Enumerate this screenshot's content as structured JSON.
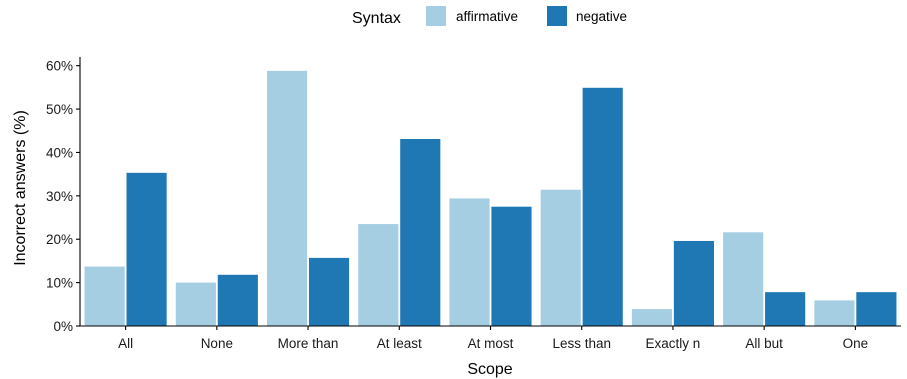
{
  "chart_data": {
    "type": "bar",
    "title": "",
    "xlabel": "Scope",
    "ylabel": "Incorrect answers (%)",
    "ylim": [
      0,
      62
    ],
    "yticks": [
      0,
      10,
      20,
      30,
      40,
      50,
      60
    ],
    "ytick_labels": [
      "0%",
      "10%",
      "20%",
      "30%",
      "40%",
      "50%",
      "60%"
    ],
    "grid": false,
    "legend": {
      "title": "Syntax",
      "placement": "top-center",
      "entries": [
        "affirmative",
        "negative"
      ]
    },
    "categories": [
      "All",
      "None",
      "More than",
      "At least",
      "At most",
      "Less than",
      "Exactly n",
      "All but",
      "One"
    ],
    "series": [
      {
        "name": "affirmative",
        "color": "#a6cee3",
        "values": [
          13.7,
          10.0,
          58.8,
          23.5,
          29.4,
          31.4,
          3.9,
          21.6,
          5.9
        ]
      },
      {
        "name": "negative",
        "color": "#1f78b4",
        "values": [
          35.3,
          11.8,
          15.7,
          43.1,
          27.5,
          54.9,
          19.6,
          7.8,
          7.8
        ]
      }
    ]
  }
}
